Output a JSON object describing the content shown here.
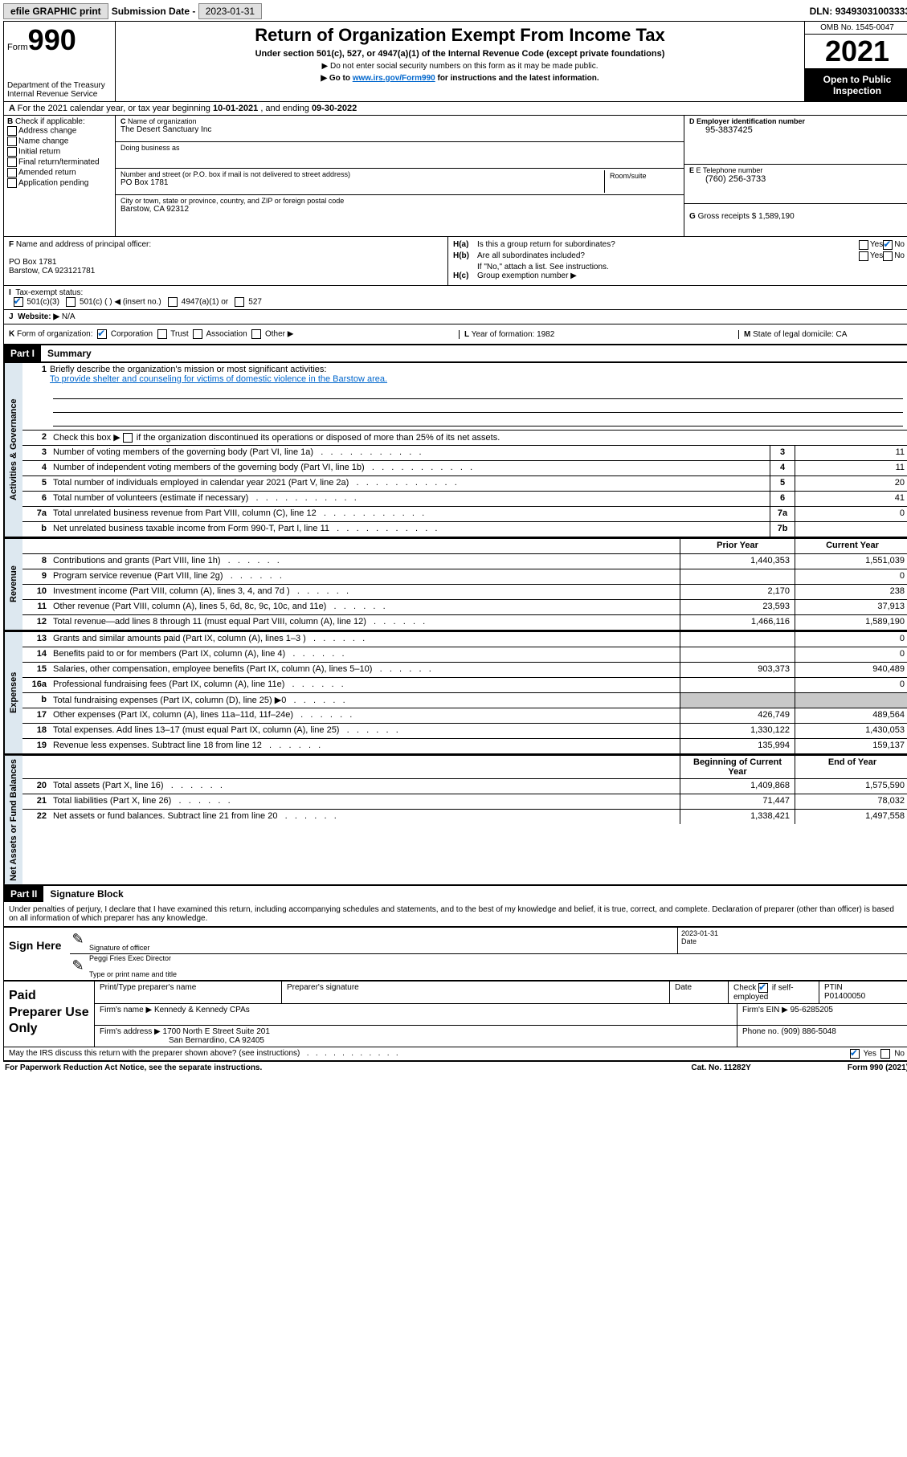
{
  "topbar": {
    "efile": "efile GRAPHIC print",
    "sub_label": "Submission Date - ",
    "sub_date": "2023-01-31",
    "dln_label": "DLN: ",
    "dln": "93493031003333"
  },
  "header": {
    "form_word": "Form",
    "form_no": "990",
    "dept": "Department of the Treasury\nInternal Revenue Service",
    "title": "Return of Organization Exempt From Income Tax",
    "sub1": "Under section 501(c), 527, or 4947(a)(1) of the Internal Revenue Code (except private foundations)",
    "sub2": "▶ Do not enter social security numbers on this form as it may be made public.",
    "sub3a": "▶ Go to ",
    "sub3_link": "www.irs.gov/Form990",
    "sub3b": " for instructions and the latest information.",
    "omb": "OMB No. 1545-0047",
    "year": "2021",
    "open1": "Open to Public",
    "open2": "Inspection"
  },
  "rowA": {
    "label": "A",
    "text": "For the 2021 calendar year, or tax year beginning ",
    "begin": "10-01-2021",
    "mid": "  , and ending ",
    "end": "09-30-2022"
  },
  "colB": {
    "label": "B",
    "head": "Check if applicable:",
    "items": [
      "Address change",
      "Name change",
      "Initial return",
      "Final return/terminated",
      "Amended return",
      "Application pending"
    ]
  },
  "colC": {
    "c_label": "C",
    "name_label": "Name of organization",
    "name": "The Desert Sanctuary Inc",
    "dba_label": "Doing business as",
    "addr_label": "Number and street (or P.O. box if mail is not delivered to street address)",
    "room_label": "Room/suite",
    "addr": "PO Box 1781",
    "city_label": "City or town, state or province, country, and ZIP or foreign postal code",
    "city": "Barstow, CA  92312"
  },
  "colD": {
    "d_label": "D Employer identification number",
    "ein": "95-3837425",
    "e_label": "E Telephone number",
    "phone": "(760) 256-3733",
    "g_label": "G",
    "gross_label": "Gross receipts $ ",
    "gross": "1,589,190"
  },
  "rowF": {
    "f_label": "F",
    "officer_label": "Name and address of principal officer:",
    "officer_addr1": "PO Box 1781",
    "officer_addr2": "Barstow, CA  923121781",
    "ha_label": "H(a)",
    "ha_text": "Is this a group return for subordinates?",
    "hb_label": "H(b)",
    "hb_text": "Are all subordinates included?",
    "hb_note": "If \"No,\" attach a list. See instructions.",
    "hc_label": "H(c)",
    "hc_text": "Group exemption number ▶",
    "yes": "Yes",
    "no": "No"
  },
  "rowI": {
    "i_label": "I",
    "tax_label": "Tax-exempt status:",
    "c3": "501(c)(3)",
    "c_other": "501(c) (   ) ◀ (insert no.)",
    "a1": "4947(a)(1) or",
    "s527": "527"
  },
  "rowJ": {
    "j_label": "J",
    "web_label": "Website: ▶",
    "web": "N/A"
  },
  "rowK": {
    "k_label": "K",
    "form_label": "Form of organization:",
    "corp": "Corporation",
    "trust": "Trust",
    "assoc": "Association",
    "other": "Other ▶",
    "l_label": "L",
    "year_label": "Year of formation: ",
    "year": "1982",
    "m_label": "M",
    "state_label": "State of legal domicile: ",
    "state": "CA"
  },
  "part1": {
    "hdr": "Part I",
    "title": "Summary"
  },
  "governance": {
    "side": "Activities & Governance",
    "line1_num": "1",
    "line1_label": "Briefly describe the organization's mission or most significant activities:",
    "line1_text": "To provide shelter and counseling for victims of domestic violence in the Barstow area.",
    "line2_num": "2",
    "line2_label": "Check this box ▶",
    "line2_text": " if the organization discontinued its operations or disposed of more than 25% of its net assets.",
    "rows": [
      {
        "n": "3",
        "d": "Number of voting members of the governing body (Part VI, line 1a)",
        "box": "3",
        "v": "11"
      },
      {
        "n": "4",
        "d": "Number of independent voting members of the governing body (Part VI, line 1b)",
        "box": "4",
        "v": "11"
      },
      {
        "n": "5",
        "d": "Total number of individuals employed in calendar year 2021 (Part V, line 2a)",
        "box": "5",
        "v": "20"
      },
      {
        "n": "6",
        "d": "Total number of volunteers (estimate if necessary)",
        "box": "6",
        "v": "41"
      },
      {
        "n": "7a",
        "d": "Total unrelated business revenue from Part VIII, column (C), line 12",
        "box": "7a",
        "v": "0"
      },
      {
        "n": "b",
        "d": "Net unrelated business taxable income from Form 990-T, Part I, line 11",
        "box": "7b",
        "v": ""
      }
    ]
  },
  "revenue": {
    "side": "Revenue",
    "hdr_prior": "Prior Year",
    "hdr_current": "Current Year",
    "rows": [
      {
        "n": "8",
        "d": "Contributions and grants (Part VIII, line 1h)",
        "p": "1,440,353",
        "c": "1,551,039"
      },
      {
        "n": "9",
        "d": "Program service revenue (Part VIII, line 2g)",
        "p": "",
        "c": "0"
      },
      {
        "n": "10",
        "d": "Investment income (Part VIII, column (A), lines 3, 4, and 7d )",
        "p": "2,170",
        "c": "238"
      },
      {
        "n": "11",
        "d": "Other revenue (Part VIII, column (A), lines 5, 6d, 8c, 9c, 10c, and 11e)",
        "p": "23,593",
        "c": "37,913"
      },
      {
        "n": "12",
        "d": "Total revenue—add lines 8 through 11 (must equal Part VIII, column (A), line 12)",
        "p": "1,466,116",
        "c": "1,589,190"
      }
    ]
  },
  "expenses": {
    "side": "Expenses",
    "rows": [
      {
        "n": "13",
        "d": "Grants and similar amounts paid (Part IX, column (A), lines 1–3 )",
        "p": "",
        "c": "0"
      },
      {
        "n": "14",
        "d": "Benefits paid to or for members (Part IX, column (A), line 4)",
        "p": "",
        "c": "0"
      },
      {
        "n": "15",
        "d": "Salaries, other compensation, employee benefits (Part IX, column (A), lines 5–10)",
        "p": "903,373",
        "c": "940,489"
      },
      {
        "n": "16a",
        "d": "Professional fundraising fees (Part IX, column (A), line 11e)",
        "p": "",
        "c": "0"
      },
      {
        "n": "b",
        "d": "Total fundraising expenses (Part IX, column (D), line 25) ▶0",
        "p": "",
        "c": "",
        "gray": true
      },
      {
        "n": "17",
        "d": "Other expenses (Part IX, column (A), lines 11a–11d, 11f–24e)",
        "p": "426,749",
        "c": "489,564"
      },
      {
        "n": "18",
        "d": "Total expenses. Add lines 13–17 (must equal Part IX, column (A), line 25)",
        "p": "1,330,122",
        "c": "1,430,053"
      },
      {
        "n": "19",
        "d": "Revenue less expenses. Subtract line 18 from line 12",
        "p": "135,994",
        "c": "159,137"
      }
    ]
  },
  "netassets": {
    "side": "Net Assets or Fund Balances",
    "hdr_begin": "Beginning of Current Year",
    "hdr_end": "End of Year",
    "rows": [
      {
        "n": "20",
        "d": "Total assets (Part X, line 16)",
        "p": "1,409,868",
        "c": "1,575,590"
      },
      {
        "n": "21",
        "d": "Total liabilities (Part X, line 26)",
        "p": "71,447",
        "c": "78,032"
      },
      {
        "n": "22",
        "d": "Net assets or fund balances. Subtract line 21 from line 20",
        "p": "1,338,421",
        "c": "1,497,558"
      }
    ]
  },
  "part2": {
    "hdr": "Part II",
    "title": "Signature Block",
    "declaration": "Under penalties of perjury, I declare that I have examined this return, including accompanying schedules and statements, and to the best of my knowledge and belief, it is true, correct, and complete. Declaration of preparer (other than officer) is based on all information of which preparer has any knowledge."
  },
  "sign": {
    "label": "Sign Here",
    "sig_officer": "Signature of officer",
    "date_label": "Date",
    "date": "2023-01-31",
    "name": "Peggi Fries  Exec Director",
    "name_label": "Type or print name and title"
  },
  "paid": {
    "label": "Paid Preparer Use Only",
    "h1": "Print/Type preparer's name",
    "h2": "Preparer's signature",
    "h3": "Date",
    "h4_a": "Check",
    "h4_b": "if self-employed",
    "h5": "PTIN",
    "ptin": "P01400050",
    "firm_name_lbl": "Firm's name    ▶ ",
    "firm_name": "Kennedy & Kennedy CPAs",
    "firm_ein_lbl": "Firm's EIN ▶ ",
    "firm_ein": "95-6285205",
    "firm_addr_lbl": "Firm's address ▶ ",
    "firm_addr1": "1700 North E Street Suite 201",
    "firm_addr2": "San Bernardino, CA  92405",
    "phone_lbl": "Phone no. ",
    "phone": "(909) 886-5048"
  },
  "footer": {
    "discuss": "May the IRS discuss this return with the preparer shown above? (see instructions)",
    "yes": "Yes",
    "no": "No",
    "paperwork": "For Paperwork Reduction Act Notice, see the separate instructions.",
    "cat": "Cat. No. 11282Y",
    "formref": "Form 990 (2021)"
  }
}
